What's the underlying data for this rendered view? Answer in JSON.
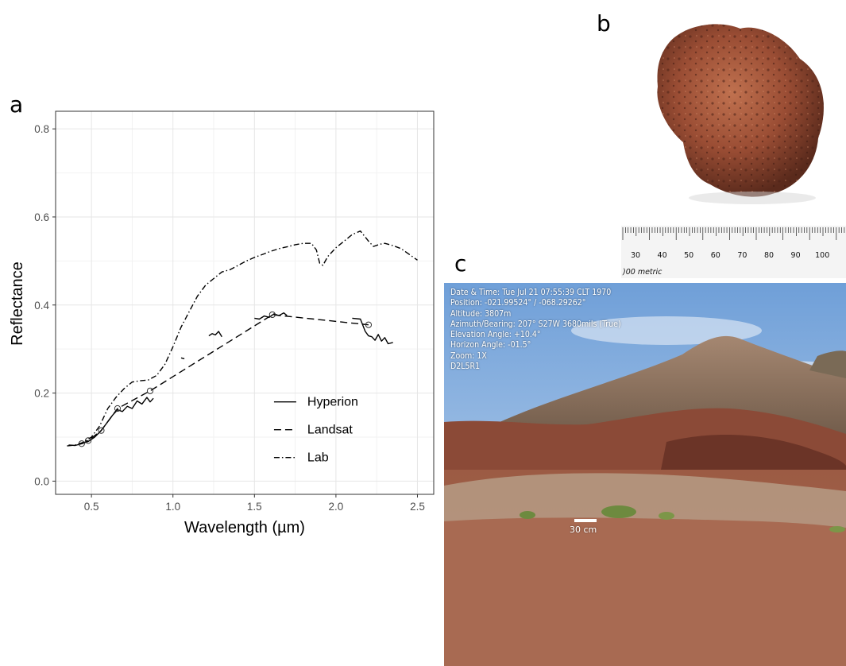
{
  "panels": {
    "a": "a",
    "b": "b",
    "c": "c"
  },
  "chart_data": {
    "type": "line",
    "xlabel": "Wavelength (µm)",
    "ylabel": "Reflectance",
    "xlim": [
      0.28,
      2.6
    ],
    "ylim": [
      -0.03,
      0.84
    ],
    "xticks": [
      0.5,
      1.0,
      1.5,
      2.0,
      2.5
    ],
    "xtick_labels": [
      "0.5",
      "1.0",
      "1.5",
      "2.0",
      "2.5"
    ],
    "yticks": [
      0.0,
      0.2,
      0.4,
      0.6,
      0.8
    ],
    "ytick_labels": [
      "0.0",
      "0.2",
      "0.4",
      "0.6",
      "0.8"
    ],
    "grid": true,
    "legend_position": "bottom-right",
    "series": [
      {
        "name": "Hyperion",
        "style": "solid",
        "segments": [
          [
            [
              0.36,
              0.082
            ],
            [
              0.4,
              0.081
            ],
            [
              0.44,
              0.085
            ],
            [
              0.48,
              0.09
            ],
            [
              0.52,
              0.1
            ],
            [
              0.56,
              0.115
            ],
            [
              0.6,
              0.135
            ],
            [
              0.63,
              0.15
            ],
            [
              0.66,
              0.162
            ],
            [
              0.69,
              0.158
            ],
            [
              0.72,
              0.17
            ],
            [
              0.75,
              0.165
            ],
            [
              0.78,
              0.182
            ],
            [
              0.81,
              0.175
            ],
            [
              0.84,
              0.19
            ],
            [
              0.86,
              0.18
            ],
            [
              0.88,
              0.188
            ]
          ],
          [
            [
              1.05,
              0.28
            ],
            [
              1.07,
              0.278
            ]
          ],
          [
            [
              1.22,
              0.33
            ],
            [
              1.24,
              0.335
            ],
            [
              1.26,
              0.332
            ],
            [
              1.28,
              0.34
            ],
            [
              1.3,
              0.328
            ]
          ],
          [
            [
              1.5,
              0.37
            ],
            [
              1.53,
              0.368
            ],
            [
              1.56,
              0.375
            ],
            [
              1.59,
              0.372
            ],
            [
              1.62,
              0.38
            ],
            [
              1.65,
              0.376
            ],
            [
              1.68,
              0.382
            ],
            [
              1.7,
              0.376
            ]
          ],
          [
            [
              2.1,
              0.37
            ],
            [
              2.15,
              0.368
            ],
            [
              2.18,
              0.34
            ],
            [
              2.2,
              0.33
            ],
            [
              2.22,
              0.328
            ],
            [
              2.24,
              0.32
            ],
            [
              2.26,
              0.333
            ],
            [
              2.28,
              0.318
            ],
            [
              2.3,
              0.326
            ],
            [
              2.32,
              0.312
            ],
            [
              2.35,
              0.315
            ]
          ]
        ]
      },
      {
        "name": "Landsat",
        "style": "dashed",
        "points": [
          [
            0.44,
            0.085
          ],
          [
            0.48,
            0.092
          ],
          [
            0.56,
            0.115
          ],
          [
            0.66,
            0.165
          ],
          [
            0.86,
            0.205
          ],
          [
            1.61,
            0.378
          ],
          [
            2.2,
            0.355
          ]
        ],
        "marker_points": [
          [
            0.44,
            0.085
          ],
          [
            0.48,
            0.092
          ],
          [
            0.56,
            0.115
          ],
          [
            0.66,
            0.165
          ],
          [
            0.86,
            0.205
          ],
          [
            1.61,
            0.378
          ],
          [
            2.2,
            0.355
          ]
        ]
      },
      {
        "name": "Lab",
        "style": "dotdash",
        "points": [
          [
            0.35,
            0.08
          ],
          [
            0.4,
            0.082
          ],
          [
            0.45,
            0.088
          ],
          [
            0.5,
            0.1
          ],
          [
            0.55,
            0.125
          ],
          [
            0.6,
            0.165
          ],
          [
            0.65,
            0.19
          ],
          [
            0.7,
            0.21
          ],
          [
            0.75,
            0.225
          ],
          [
            0.8,
            0.228
          ],
          [
            0.85,
            0.23
          ],
          [
            0.9,
            0.24
          ],
          [
            0.95,
            0.265
          ],
          [
            1.0,
            0.305
          ],
          [
            1.05,
            0.35
          ],
          [
            1.1,
            0.385
          ],
          [
            1.15,
            0.42
          ],
          [
            1.2,
            0.445
          ],
          [
            1.25,
            0.46
          ],
          [
            1.3,
            0.475
          ],
          [
            1.35,
            0.48
          ],
          [
            1.4,
            0.49
          ],
          [
            1.45,
            0.5
          ],
          [
            1.5,
            0.508
          ],
          [
            1.55,
            0.515
          ],
          [
            1.6,
            0.522
          ],
          [
            1.65,
            0.528
          ],
          [
            1.7,
            0.532
          ],
          [
            1.75,
            0.537
          ],
          [
            1.8,
            0.54
          ],
          [
            1.85,
            0.54
          ],
          [
            1.88,
            0.525
          ],
          [
            1.9,
            0.495
          ],
          [
            1.92,
            0.49
          ],
          [
            1.95,
            0.51
          ],
          [
            2.0,
            0.53
          ],
          [
            2.05,
            0.545
          ],
          [
            2.1,
            0.56
          ],
          [
            2.15,
            0.568
          ],
          [
            2.2,
            0.545
          ],
          [
            2.23,
            0.533
          ],
          [
            2.27,
            0.538
          ],
          [
            2.3,
            0.54
          ],
          [
            2.35,
            0.535
          ],
          [
            2.4,
            0.528
          ],
          [
            2.45,
            0.515
          ],
          [
            2.5,
            0.502
          ]
        ]
      }
    ]
  },
  "photo_b": {
    "ruler_numbers": [
      "30",
      "40",
      "50",
      "60",
      "70",
      "80",
      "90",
      "100"
    ],
    "ruler_caption": ")00 metric"
  },
  "photo_c": {
    "overlay_lines": [
      "Date & Time: Tue Jul 21 07:55:39 CLT 1970",
      "Position: -021.99524° / -068.29262°",
      "Altitude: 3807m",
      "Azimuth/Bearing: 207° S27W  3680mils (True)",
      "Elevation Angle: +10.4°",
      "Horizon Angle: -01.5°",
      "Zoom: 1X",
      "D2L5R1"
    ],
    "scale_label": "30 cm"
  }
}
